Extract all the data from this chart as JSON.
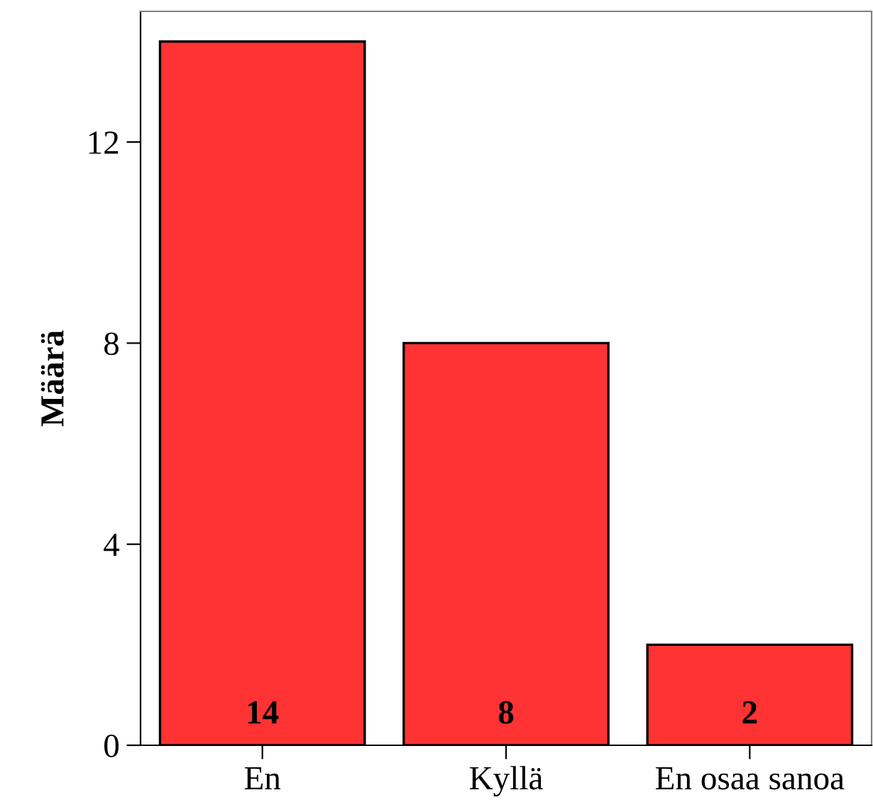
{
  "chart_data": {
    "type": "bar",
    "ylabel": "Määrä",
    "categories": [
      "En",
      "Kyllä",
      "En osaa sanoa"
    ],
    "values": [
      14,
      8,
      2
    ],
    "color": "#ff3333",
    "ylim": [
      0,
      14.6
    ],
    "yticks": [
      0,
      4,
      8,
      12
    ],
    "grid": false,
    "data_labels": true
  }
}
